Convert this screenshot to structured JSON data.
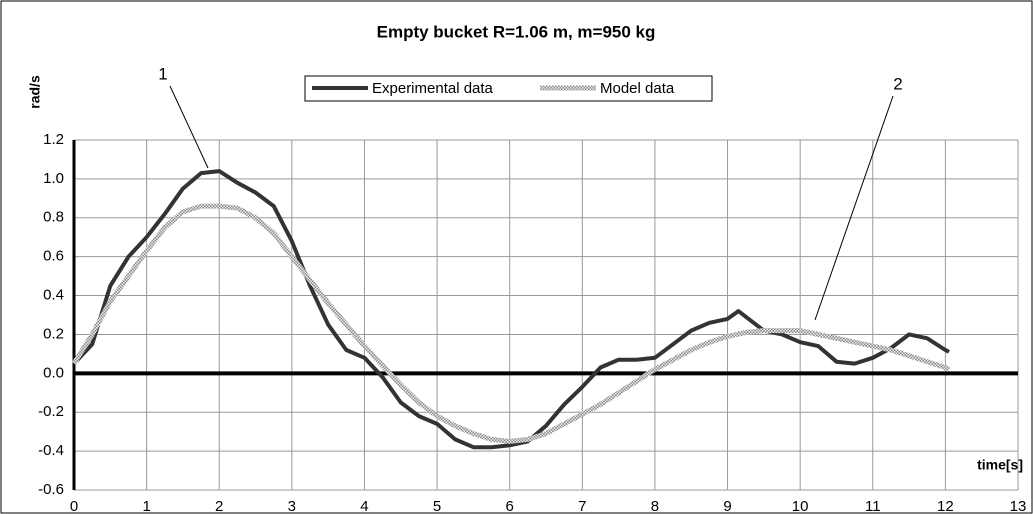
{
  "chart_data": {
    "type": "line",
    "title": "Empty bucket R=1.06 m, m=950 kg",
    "y_label": "rad/s",
    "x_label": "time[s]",
    "xlim": [
      0,
      13
    ],
    "ylim": [
      -0.6,
      1.2
    ],
    "xticks": [
      0,
      1,
      2,
      3,
      4,
      5,
      6,
      7,
      8,
      9,
      10,
      11,
      12,
      13
    ],
    "yticks": [
      1.2,
      {
        "value": 1,
        "label": "1.0"
      },
      0.8,
      0.6,
      0.4,
      0.2,
      {
        "value": 0,
        "label": "0.0"
      },
      -0.2,
      -0.4,
      -0.6
    ],
    "grid": true,
    "annotations": [
      "1",
      "2"
    ],
    "series": [
      {
        "name": "Experimental data",
        "color": "#333333",
        "x": [
          0,
          0.25,
          0.5,
          0.75,
          1,
          1.25,
          1.5,
          1.75,
          2,
          2.25,
          2.5,
          2.75,
          3,
          3.25,
          3.5,
          3.75,
          4,
          4.25,
          4.5,
          4.75,
          5,
          5.25,
          5.5,
          5.75,
          6,
          6.25,
          6.5,
          6.75,
          7,
          7.25,
          7.5,
          7.75,
          8,
          8.25,
          8.5,
          8.75,
          9,
          9.15,
          9.5,
          9.75,
          10,
          10.25,
          10.5,
          10.75,
          11,
          11.25,
          11.5,
          11.75,
          12,
          12.05
        ],
        "values": [
          0.05,
          0.15,
          0.45,
          0.6,
          0.7,
          0.82,
          0.95,
          1.03,
          1.04,
          0.98,
          0.93,
          0.86,
          0.68,
          0.45,
          0.25,
          0.12,
          0.08,
          -0.02,
          -0.15,
          -0.22,
          -0.26,
          -0.34,
          -0.38,
          -0.38,
          -0.37,
          -0.35,
          -0.27,
          -0.16,
          -0.07,
          0.03,
          0.07,
          0.07,
          0.08,
          0.15,
          0.22,
          0.26,
          0.28,
          0.32,
          0.22,
          0.2,
          0.16,
          0.14,
          0.06,
          0.05,
          0.08,
          0.13,
          0.2,
          0.18,
          0.12,
          0.11
        ]
      },
      {
        "name": "Model data",
        "color": "#aaaaaa",
        "x": [
          0,
          0.25,
          0.5,
          0.75,
          1,
          1.25,
          1.5,
          1.75,
          2,
          2.25,
          2.5,
          2.75,
          3,
          3.25,
          3.5,
          3.75,
          4,
          4.25,
          4.5,
          4.75,
          5,
          5.25,
          5.5,
          5.75,
          6,
          6.25,
          6.5,
          6.75,
          7,
          7.25,
          7.5,
          7.75,
          8,
          8.25,
          8.5,
          8.75,
          9,
          9.25,
          9.5,
          9.75,
          10,
          10.25,
          10.5,
          10.75,
          11,
          11.25,
          11.5,
          11.75,
          12,
          12.05
        ],
        "values": [
          0.05,
          0.2,
          0.37,
          0.5,
          0.63,
          0.75,
          0.83,
          0.86,
          0.86,
          0.85,
          0.8,
          0.72,
          0.6,
          0.48,
          0.36,
          0.25,
          0.14,
          0.04,
          -0.06,
          -0.15,
          -0.22,
          -0.27,
          -0.31,
          -0.34,
          -0.35,
          -0.34,
          -0.31,
          -0.26,
          -0.21,
          -0.16,
          -0.1,
          -0.04,
          0.02,
          0.07,
          0.12,
          0.16,
          0.19,
          0.21,
          0.22,
          0.22,
          0.22,
          0.2,
          0.18,
          0.16,
          0.14,
          0.12,
          0.09,
          0.06,
          0.03,
          0.02
        ]
      }
    ]
  }
}
